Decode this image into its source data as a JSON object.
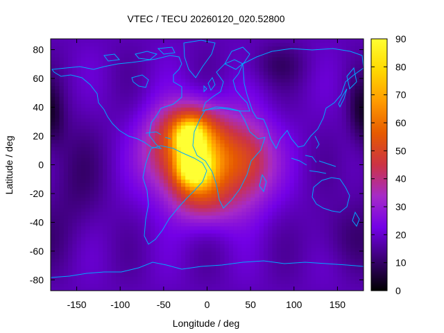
{
  "chart_data": {
    "type": "heatmap",
    "title": "VTEC / TECU 20260120_020.52800",
    "xlabel": "Longitude / deg",
    "ylabel": "Latitude / deg",
    "xlim": [
      -180,
      180
    ],
    "ylim": [
      -87.5,
      87.5
    ],
    "x_ticks": [
      -150,
      -100,
      -50,
      0,
      50,
      100,
      150
    ],
    "y_ticks": [
      -80,
      -60,
      -40,
      -20,
      0,
      20,
      40,
      60,
      80
    ],
    "colorbar": {
      "min": 0,
      "max": 90,
      "ticks": [
        0,
        10,
        20,
        30,
        40,
        50,
        60,
        70,
        80,
        90
      ]
    },
    "colormap": [
      "#000000",
      "#3a0073",
      "#7300e6",
      "#a62bc8",
      "#cc3344",
      "#e65a00",
      "#ff9a00",
      "#ffd800",
      "#ffff33"
    ],
    "grid": {
      "lon_step": 5,
      "lat_step": 2.5
    },
    "background_vtec": 18,
    "features": [
      {
        "kind": "peak",
        "lon": -20,
        "lat": 18,
        "vtec": 50,
        "sigma_lon": 10,
        "sigma_lat": 7
      },
      {
        "kind": "peak",
        "lon": -15,
        "lat": 0,
        "vtec": 55,
        "sigma_lon": 11,
        "sigma_lat": 8
      },
      {
        "kind": "peak",
        "lon": -20,
        "lat": 25,
        "vtec": 30,
        "sigma_lon": 22,
        "sigma_lat": 13
      },
      {
        "kind": "peak",
        "lon": -15,
        "lat": -5,
        "vtec": 28,
        "sigma_lon": 22,
        "sigma_lat": 15
      },
      {
        "kind": "peak",
        "lon": 10,
        "lat": 5,
        "vtec": 32,
        "sigma_lon": 38,
        "sigma_lat": 22
      },
      {
        "kind": "peak",
        "lon": -55,
        "lat": 10,
        "vtec": 15,
        "sigma_lon": 20,
        "sigma_lat": 20
      },
      {
        "kind": "peak",
        "lon": 50,
        "lat": 0,
        "vtec": 15,
        "sigma_lon": 20,
        "sigma_lat": 20
      },
      {
        "kind": "peak",
        "lon": 0,
        "lat": -30,
        "vtec": 10,
        "sigma_lon": 30,
        "sigma_lat": 12
      },
      {
        "kind": "low",
        "lon": -155,
        "lat": -10,
        "vtec": -6,
        "sigma_lon": 25,
        "sigma_lat": 30
      },
      {
        "kind": "low",
        "lon": 155,
        "lat": -50,
        "vtec": -5,
        "sigma_lon": 25,
        "sigma_lat": 15
      },
      {
        "kind": "low",
        "lon": 175,
        "lat": 40,
        "vtec": -8,
        "sigma_lon": 10,
        "sigma_lat": 15
      },
      {
        "kind": "low",
        "lon": 80,
        "lat": 70,
        "vtec": -6,
        "sigma_lon": 25,
        "sigma_lat": 10
      },
      {
        "kind": "low",
        "lon": -175,
        "lat": 30,
        "vtec": -6,
        "sigma_lon": 10,
        "sigma_lat": 15
      }
    ],
    "overlay": "coastlines"
  }
}
